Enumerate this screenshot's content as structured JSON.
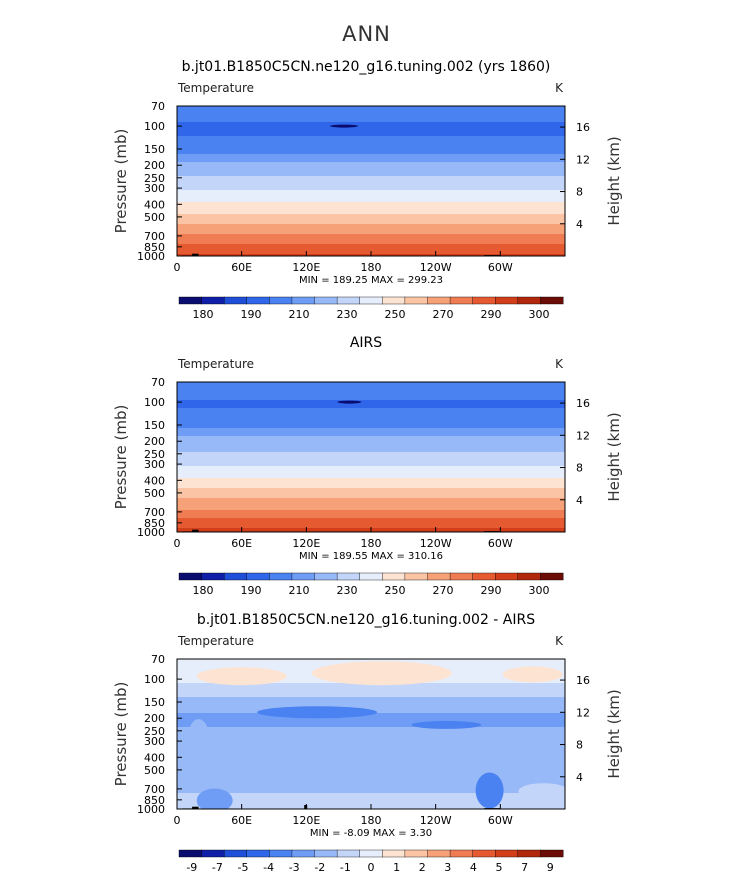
{
  "page": {
    "title": "ANN"
  },
  "colors": {
    "temp_palette": [
      "#0b0c70",
      "#0f1fa8",
      "#1f4fd8",
      "#2f66ea",
      "#4a82f2",
      "#6f9df5",
      "#98b9f7",
      "#c3d6fa",
      "#e6eefc",
      "#fde3d2",
      "#fbc4a4",
      "#f6a178",
      "#ef7c52",
      "#e65a31",
      "#d23e1a",
      "#b1270c",
      "#6b0d06"
    ],
    "diff_palette": [
      "#0b0c70",
      "#0f1fa8",
      "#1f4fd8",
      "#2f66ea",
      "#4a82f2",
      "#6f9df5",
      "#98b9f7",
      "#c3d6fa",
      "#e6eefc",
      "#fde3d2",
      "#fbc4a4",
      "#f6a178",
      "#ef7c52",
      "#e65a31",
      "#d23e1a",
      "#b1270c",
      "#6b0d06"
    ],
    "land_mask": "#000000"
  },
  "chart_data": [
    {
      "type": "heatmap",
      "title": "b.jt01.B1850C5CN.ne120_g16.tuning.002 (yrs 1860)",
      "variable_label": "Temperature",
      "units_label": "K",
      "ylabel": "Pressure  (mb)",
      "ylabel_right": "Height  (km)",
      "xticks": [
        "0",
        "60E",
        "120E",
        "180",
        "120W",
        "60W"
      ],
      "x_values_deg": [
        0,
        60,
        120,
        180,
        240,
        300
      ],
      "xlim": [
        0,
        360
      ],
      "pressure_ticks": [
        "70",
        "100",
        "150",
        "200",
        "250",
        "300",
        "400",
        "500",
        "700",
        "850",
        "1000"
      ],
      "pressure_values": [
        70,
        100,
        150,
        200,
        250,
        300,
        400,
        500,
        700,
        850,
        1000
      ],
      "height_ticks": [
        "16",
        "12",
        "8",
        "4"
      ],
      "height_values": [
        16,
        12,
        8,
        4
      ],
      "ylim_mb": [
        70,
        1000
      ],
      "min_max_text": "MIN = 189.25   MAX = 299.23",
      "min": 189.25,
      "max": 299.23,
      "colorbar_labels": [
        "180",
        "190",
        "210",
        "230",
        "250",
        "270",
        "290",
        "300"
      ],
      "profile": [
        [
          70,
          205
        ],
        [
          100,
          198
        ],
        [
          150,
          203
        ],
        [
          200,
          212
        ],
        [
          250,
          221
        ],
        [
          300,
          228
        ],
        [
          400,
          242
        ],
        [
          500,
          254
        ],
        [
          700,
          272
        ],
        [
          850,
          283
        ],
        [
          1000,
          293
        ]
      ]
    },
    {
      "type": "heatmap",
      "title": "AIRS",
      "variable_label": "Temperature",
      "units_label": "K",
      "ylabel": "Pressure  (mb)",
      "ylabel_right": "Height  (km)",
      "xticks": [
        "0",
        "60E",
        "120E",
        "180",
        "120W",
        "60W"
      ],
      "x_values_deg": [
        0,
        60,
        120,
        180,
        240,
        300
      ],
      "xlim": [
        0,
        360
      ],
      "pressure_ticks": [
        "70",
        "100",
        "150",
        "200",
        "250",
        "300",
        "400",
        "500",
        "700",
        "850",
        "1000"
      ],
      "pressure_values": [
        70,
        100,
        150,
        200,
        250,
        300,
        400,
        500,
        700,
        850,
        1000
      ],
      "height_ticks": [
        "16",
        "12",
        "8",
        "4"
      ],
      "height_values": [
        16,
        12,
        8,
        4
      ],
      "ylim_mb": [
        70,
        1000
      ],
      "min_max_text": "MIN = 189.55   MAX = 310.16",
      "min": 189.55,
      "max": 310.16,
      "colorbar_labels": [
        "180",
        "190",
        "210",
        "230",
        "250",
        "270",
        "290",
        "300"
      ],
      "profile": [
        [
          70,
          205
        ],
        [
          100,
          199
        ],
        [
          150,
          204
        ],
        [
          200,
          213
        ],
        [
          250,
          222
        ],
        [
          300,
          229
        ],
        [
          400,
          243
        ],
        [
          500,
          255
        ],
        [
          700,
          273
        ],
        [
          850,
          285
        ],
        [
          1000,
          296
        ]
      ]
    },
    {
      "type": "heatmap",
      "title": "b.jt01.B1850C5CN.ne120_g16.tuning.002 - AIRS",
      "variable_label": "Temperature",
      "units_label": "K",
      "ylabel": "Pressure  (mb)",
      "ylabel_right": "Height  (km)",
      "xticks": [
        "0",
        "60E",
        "120E",
        "180",
        "120W",
        "60W"
      ],
      "x_values_deg": [
        0,
        60,
        120,
        180,
        240,
        300
      ],
      "xlim": [
        0,
        360
      ],
      "pressure_ticks": [
        "70",
        "100",
        "150",
        "200",
        "250",
        "300",
        "400",
        "500",
        "700",
        "850",
        "1000"
      ],
      "pressure_values": [
        70,
        100,
        150,
        200,
        250,
        300,
        400,
        500,
        700,
        850,
        1000
      ],
      "height_ticks": [
        "16",
        "12",
        "8",
        "4"
      ],
      "height_values": [
        16,
        12,
        8,
        4
      ],
      "ylim_mb": [
        70,
        1000
      ],
      "min_max_text": "MIN =  -8.09   MAX =   3.30",
      "min": -8.09,
      "max": 3.3,
      "colorbar_labels": [
        "-9",
        "-7",
        "-5",
        "-4",
        "-3",
        "-2",
        "-1",
        "0",
        "1",
        "2",
        "3",
        "4",
        "5",
        "7",
        "9"
      ],
      "profile": [
        [
          70,
          0.5
        ],
        [
          100,
          0.2
        ],
        [
          150,
          -1.5
        ],
        [
          200,
          -2.3
        ],
        [
          250,
          -1.8
        ],
        [
          300,
          -1.6
        ],
        [
          400,
          -1.4
        ],
        [
          500,
          -1.3
        ],
        [
          700,
          -1.2
        ],
        [
          850,
          -0.6
        ],
        [
          1000,
          -0.3
        ]
      ]
    }
  ]
}
